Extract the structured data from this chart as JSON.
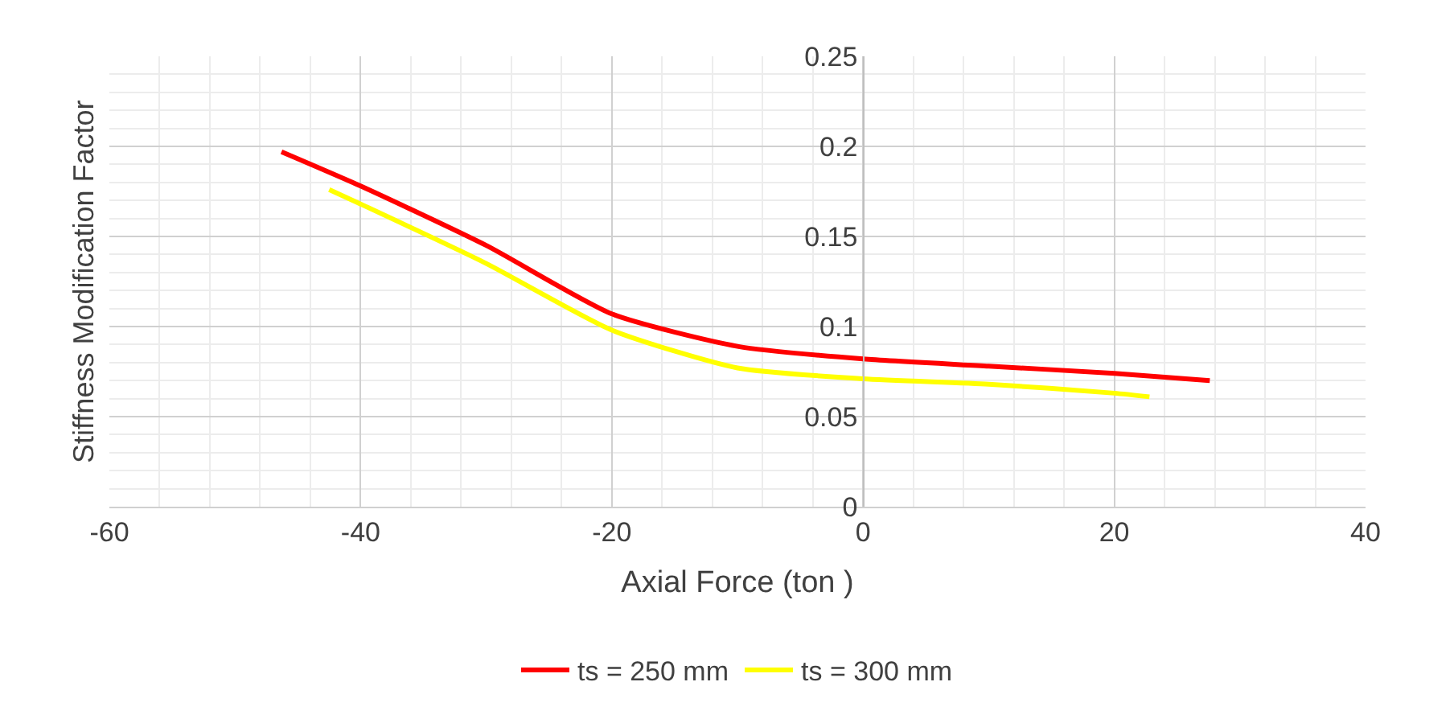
{
  "chart_data": {
    "type": "line",
    "xlabel": "Axial Force (ton )",
    "ylabel": "Stiffness Modification Factor",
    "xlim": [
      -60,
      40
    ],
    "xticks": [
      -60,
      -40,
      -20,
      0,
      20,
      40
    ],
    "ylim": [
      0,
      0.25
    ],
    "yticks": [
      0,
      0.05,
      0.1,
      0.15,
      0.2,
      0.25
    ],
    "grid": true,
    "legend": "bottom",
    "line_style": "solid",
    "marker": "none",
    "series": [
      {
        "name": "ts = 250 mm",
        "color": "#ff0000",
        "x": [
          -46.3,
          -40,
          -30,
          -20,
          -10,
          0,
          10,
          20,
          27.6
        ],
        "values": [
          0.197,
          0.178,
          0.145,
          0.107,
          0.089,
          0.082,
          0.078,
          0.074,
          0.07
        ]
      },
      {
        "name": "ts = 300 mm",
        "color": "#ffff00",
        "x": [
          -42.5,
          -40,
          -30,
          -20,
          -10,
          0,
          10,
          20,
          22.8
        ],
        "values": [
          0.176,
          0.168,
          0.135,
          0.098,
          0.077,
          0.071,
          0.068,
          0.063,
          0.061
        ]
      }
    ]
  }
}
